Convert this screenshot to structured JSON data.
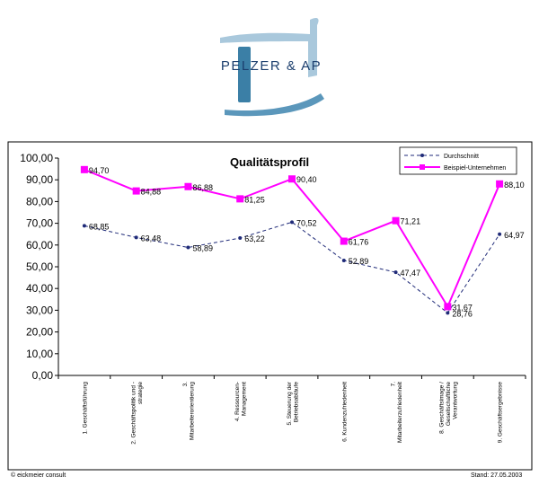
{
  "logo": {
    "text": "PELZER & AP"
  },
  "footer": {
    "left": "© eickmeier consult",
    "right": "Stand: 27.05.2003"
  },
  "colors": {
    "durchschnitt": "#1f2a78",
    "beispiel": "#ff00ff",
    "logo_dark": "#3b7fa6",
    "logo_light": "#a9c8dc"
  },
  "chart_data": {
    "type": "line",
    "title": "Qualitätsprofil",
    "ylim": [
      0,
      100
    ],
    "yticks": [
      "0,00",
      "10,00",
      "20,00",
      "30,00",
      "40,00",
      "50,00",
      "60,00",
      "70,00",
      "80,00",
      "90,00",
      "100,00"
    ],
    "grid": false,
    "legend_position": "top-right",
    "categories": [
      [
        "1. Geschäftsführung"
      ],
      [
        "2. Geschäftspolitik und -",
        "strategie"
      ],
      [
        "3.",
        "Mitarbeiterorientierung"
      ],
      [
        "4. Ressourcen-",
        "Management"
      ],
      [
        "5. Steuerung der",
        "Betriebsabläufe"
      ],
      [
        "6. Kundenzufriedenheit"
      ],
      [
        "7.",
        "Mitarbeiterzufriedenheit"
      ],
      [
        "8. Geschäftsimage /",
        "Gesellschaftliche",
        "Verantwortung"
      ],
      [
        "9. Geschäftsergebnisse"
      ]
    ],
    "series": [
      {
        "name": "Durchschnitt",
        "values": [
          68.85,
          63.48,
          58.89,
          63.22,
          70.52,
          52.89,
          47.47,
          28.76,
          64.97
        ],
        "labels": [
          "68,85",
          "63,48",
          "58,89",
          "63,22",
          "70,52",
          "52,89",
          "47,47",
          "28,76",
          "64,97"
        ]
      },
      {
        "name": "Beispiel-Unternehmen",
        "values": [
          94.7,
          84.88,
          86.88,
          81.25,
          90.4,
          61.76,
          71.21,
          31.67,
          88.1
        ],
        "labels": [
          "94,70",
          "84,88",
          "86,88",
          "81,25",
          "90,40",
          "61,76",
          "71,21",
          "31,67",
          "88,10"
        ]
      }
    ]
  }
}
